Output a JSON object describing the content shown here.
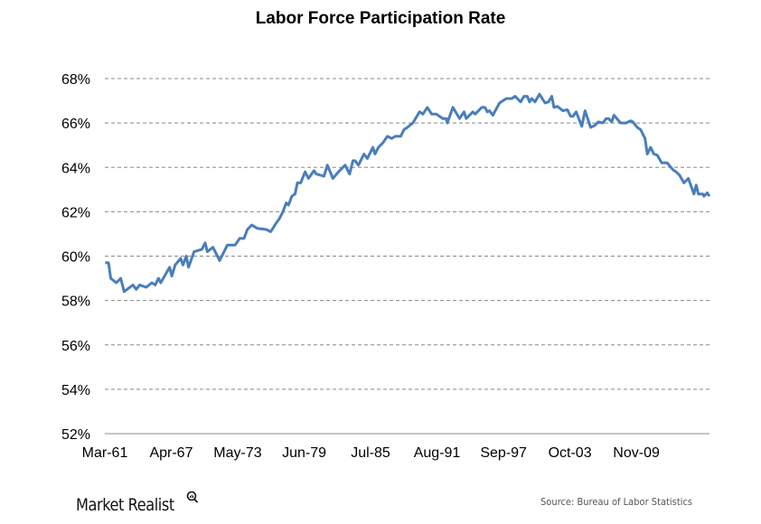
{
  "chart_data": {
    "type": "line",
    "title": "Labor Force Participation Rate",
    "xlabel": "",
    "ylabel": "",
    "ylim": [
      52,
      68
    ],
    "xlim": [
      1961.17,
      2015.6
    ],
    "grid": true,
    "y_ticks": [
      52,
      54,
      56,
      58,
      60,
      62,
      64,
      66,
      68
    ],
    "y_tick_labels": [
      "52%",
      "54%",
      "56%",
      "58%",
      "60%",
      "62%",
      "64%",
      "66%",
      "68%"
    ],
    "x_ticks": [
      1961.17,
      1967.25,
      1973.33,
      1979.42,
      1985.5,
      1991.58,
      1997.67,
      2003.75,
      2009.83
    ],
    "x_tick_labels": [
      "Mar-61",
      "Apr-67",
      "May-73",
      "Jun-79",
      "Jul-85",
      "Aug-91",
      "Sep-97",
      "Oct-03",
      "Nov-09"
    ],
    "series": [
      {
        "name": "Labor Force Participation Rate",
        "color": "#4a7ebb",
        "points": [
          [
            1961.2,
            59.7
          ],
          [
            1961.5,
            59.7
          ],
          [
            1961.7,
            59.0
          ],
          [
            1962.2,
            58.8
          ],
          [
            1962.6,
            59.0
          ],
          [
            1962.9,
            58.4
          ],
          [
            1963.7,
            58.7
          ],
          [
            1964.0,
            58.5
          ],
          [
            1964.3,
            58.7
          ],
          [
            1964.9,
            58.6
          ],
          [
            1965.4,
            58.8
          ],
          [
            1965.7,
            58.7
          ],
          [
            1966.0,
            59.0
          ],
          [
            1966.2,
            58.8
          ],
          [
            1967.0,
            59.5
          ],
          [
            1967.2,
            59.1
          ],
          [
            1967.5,
            59.6
          ],
          [
            1968.0,
            59.9
          ],
          [
            1968.2,
            59.6
          ],
          [
            1968.5,
            60.0
          ],
          [
            1968.7,
            59.5
          ],
          [
            1969.2,
            60.2
          ],
          [
            1969.9,
            60.3
          ],
          [
            1970.2,
            60.6
          ],
          [
            1970.4,
            60.2
          ],
          [
            1970.9,
            60.4
          ],
          [
            1971.5,
            59.8
          ],
          [
            1972.2,
            60.5
          ],
          [
            1972.9,
            60.5
          ],
          [
            1973.3,
            60.8
          ],
          [
            1973.7,
            60.8
          ],
          [
            1974.0,
            61.2
          ],
          [
            1974.4,
            61.4
          ],
          [
            1974.9,
            61.25
          ],
          [
            1975.7,
            61.2
          ],
          [
            1976.1,
            61.1
          ],
          [
            1976.6,
            61.5
          ],
          [
            1976.9,
            61.7
          ],
          [
            1977.2,
            62.0
          ],
          [
            1977.5,
            62.4
          ],
          [
            1977.7,
            62.3
          ],
          [
            1978.0,
            62.7
          ],
          [
            1978.3,
            62.8
          ],
          [
            1978.5,
            63.3
          ],
          [
            1978.8,
            63.3
          ],
          [
            1979.2,
            63.8
          ],
          [
            1979.5,
            63.5
          ],
          [
            1980.0,
            63.85
          ],
          [
            1980.2,
            63.7
          ],
          [
            1980.9,
            63.6
          ],
          [
            1981.2,
            64.1
          ],
          [
            1981.7,
            63.5
          ],
          [
            1982.2,
            63.8
          ],
          [
            1982.8,
            64.1
          ],
          [
            1983.2,
            63.7
          ],
          [
            1983.5,
            64.3
          ],
          [
            1983.7,
            64.3
          ],
          [
            1984.0,
            64.1
          ],
          [
            1984.5,
            64.6
          ],
          [
            1984.8,
            64.4
          ],
          [
            1985.3,
            64.9
          ],
          [
            1985.5,
            64.6
          ],
          [
            1985.8,
            64.9
          ],
          [
            1986.2,
            65.1
          ],
          [
            1986.6,
            65.4
          ],
          [
            1987.0,
            65.3
          ],
          [
            1987.3,
            65.4
          ],
          [
            1987.8,
            65.4
          ],
          [
            1988.1,
            65.7
          ],
          [
            1988.4,
            65.8
          ],
          [
            1988.9,
            66.0
          ],
          [
            1989.5,
            66.5
          ],
          [
            1989.8,
            66.4
          ],
          [
            1990.2,
            66.7
          ],
          [
            1990.6,
            66.4
          ],
          [
            1991.0,
            66.4
          ],
          [
            1991.6,
            66.2
          ],
          [
            1991.9,
            66.2
          ],
          [
            1992.0,
            66.0
          ],
          [
            1992.5,
            66.7
          ],
          [
            1993.1,
            66.2
          ],
          [
            1993.5,
            66.5
          ],
          [
            1993.7,
            66.2
          ],
          [
            1994.3,
            66.5
          ],
          [
            1994.5,
            66.4
          ],
          [
            1995.1,
            66.7
          ],
          [
            1995.4,
            66.7
          ],
          [
            1995.6,
            66.5
          ],
          [
            1995.8,
            66.55
          ],
          [
            1996.1,
            66.35
          ],
          [
            1996.7,
            66.9
          ],
          [
            1997.3,
            67.1
          ],
          [
            1997.8,
            67.1
          ],
          [
            1998.1,
            67.2
          ],
          [
            1998.6,
            66.95
          ],
          [
            1998.9,
            67.2
          ],
          [
            1999.2,
            67.2
          ],
          [
            1999.4,
            66.95
          ],
          [
            1999.6,
            67.1
          ],
          [
            1999.9,
            66.95
          ],
          [
            2000.3,
            67.3
          ],
          [
            2000.8,
            66.9
          ],
          [
            2001.1,
            66.95
          ],
          [
            2001.4,
            67.2
          ],
          [
            2001.6,
            66.7
          ],
          [
            2001.9,
            66.75
          ],
          [
            2002.4,
            66.55
          ],
          [
            2002.8,
            66.6
          ],
          [
            2003.1,
            66.3
          ],
          [
            2003.3,
            66.3
          ],
          [
            2003.6,
            66.5
          ],
          [
            2004.1,
            65.85
          ],
          [
            2004.4,
            66.55
          ],
          [
            2004.9,
            65.8
          ],
          [
            2005.3,
            65.9
          ],
          [
            2005.6,
            66.05
          ],
          [
            2006.0,
            66.0
          ],
          [
            2006.3,
            66.2
          ],
          [
            2006.5,
            66.2
          ],
          [
            2006.8,
            66.05
          ],
          [
            2007.0,
            66.35
          ],
          [
            2007.6,
            66.0
          ],
          [
            2008.1,
            66.0
          ],
          [
            2008.5,
            66.1
          ],
          [
            2008.7,
            66.05
          ],
          [
            2009.1,
            65.8
          ],
          [
            2009.4,
            65.7
          ],
          [
            2009.8,
            65.3
          ],
          [
            2010.0,
            64.6
          ],
          [
            2010.3,
            64.9
          ],
          [
            2010.6,
            64.6
          ],
          [
            2010.9,
            64.55
          ],
          [
            2011.3,
            64.2
          ],
          [
            2011.8,
            64.2
          ],
          [
            2012.3,
            63.9
          ],
          [
            2012.6,
            63.8
          ],
          [
            2012.9,
            63.65
          ],
          [
            2013.3,
            63.3
          ],
          [
            2013.7,
            63.5
          ],
          [
            2014.2,
            62.8
          ],
          [
            2014.4,
            63.2
          ],
          [
            2014.6,
            62.8
          ],
          [
            2015.0,
            62.8
          ],
          [
            2015.1,
            62.7
          ],
          [
            2015.4,
            62.85
          ],
          [
            2015.6,
            62.7
          ]
        ]
      }
    ],
    "legend": "none"
  },
  "footer": {
    "logo_text": "Market Realist",
    "source": "Source: Bureau of Labor Statistics"
  }
}
